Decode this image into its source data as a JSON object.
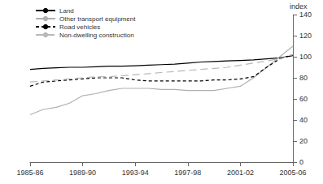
{
  "chart_data": {
    "type": "line",
    "y_label": "index",
    "categories": [
      "1985-86",
      null,
      null,
      null,
      "1989-90",
      null,
      null,
      null,
      "1993-94",
      null,
      null,
      null,
      "1997-98",
      null,
      null,
      null,
      "2001-02",
      null,
      null,
      null,
      "2005-06"
    ],
    "series": [
      {
        "name": "Land",
        "color": "#000000",
        "line_style": "solid",
        "values": [
          88,
          89,
          89.5,
          90,
          90,
          90.5,
          91,
          91,
          91.5,
          92,
          92.5,
          93,
          94,
          95,
          95.5,
          96,
          96.5,
          97,
          98,
          99,
          101
        ]
      },
      {
        "name": "Other transport equipment",
        "color": "#b0b0b0",
        "line_style": "solid",
        "values": [
          45,
          50,
          52,
          56,
          63,
          65,
          68,
          70,
          70,
          70,
          69,
          69,
          68,
          68,
          68,
          70,
          72,
          80,
          90,
          100,
          110
        ]
      },
      {
        "name": "Road vehicles",
        "color": "#000000",
        "line_style": "dashed",
        "values": [
          72,
          76,
          77,
          78,
          79,
          80,
          80,
          80,
          78,
          77,
          77,
          77,
          77,
          77,
          78,
          78,
          79,
          81,
          90,
          98,
          102
        ]
      },
      {
        "name": "Non-dwelling construction",
        "color": "#b8b8b8",
        "line_style": "longdash",
        "values": [
          76,
          77,
          78,
          79,
          80,
          81,
          81,
          82,
          83,
          84,
          85,
          86,
          87,
          88,
          89,
          90,
          92,
          94,
          96,
          98,
          102
        ]
      }
    ],
    "ylim": [
      0,
      140
    ],
    "yticks": [
      0,
      20,
      40,
      60,
      80,
      100,
      120,
      140
    ],
    "grid": false,
    "legend": "top-left"
  }
}
